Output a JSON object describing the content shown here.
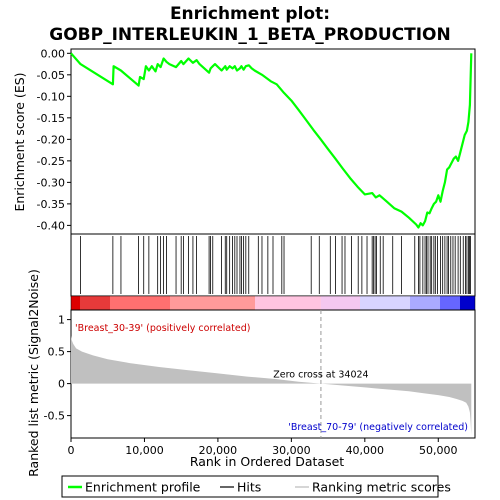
{
  "chart_data": {
    "type": "line",
    "title_line1": "Enrichment plot:",
    "title_line2": "GOBP_INTERLEUKIN_1_BETA_PRODUCTION",
    "top_panel": {
      "ylabel": "Enrichment score (ES)",
      "ylim": [
        -0.42,
        0.01
      ],
      "yticks": [
        0.0,
        -0.05,
        -0.1,
        -0.15,
        -0.2,
        -0.25,
        -0.3,
        -0.35,
        -0.4
      ],
      "ytick_labels": [
        "0.00",
        "-0.05",
        "-0.10",
        "-0.15",
        "-0.20",
        "-0.25",
        "-0.30",
        "-0.35",
        "-0.40"
      ],
      "series": [
        {
          "name": "Enrichment profile",
          "color": "#00ff00",
          "x": [
            0,
            1300,
            5700,
            5800,
            6800,
            9200,
            9400,
            9900,
            10200,
            10600,
            11000,
            11500,
            11800,
            12200,
            12600,
            13000,
            13400,
            14300,
            15000,
            15300,
            16000,
            16600,
            17100,
            17500,
            18800,
            19000,
            19300,
            19600,
            20500,
            21000,
            21200,
            21600,
            22000,
            22300,
            22600,
            23000,
            23200,
            23500,
            23800,
            24200,
            24600,
            25000,
            26000,
            27200,
            28000,
            29000,
            30000,
            31000,
            32000,
            33000,
            34000,
            35000,
            36000,
            37000,
            38000,
            39000,
            40000,
            41000,
            41500,
            42000,
            43000,
            44000,
            45000,
            46000,
            47000,
            47300,
            47600,
            47900,
            48200,
            48500,
            48800,
            49100,
            49400,
            49700,
            50000,
            50300,
            50600,
            50900,
            51200,
            51500,
            51800,
            52100,
            52400,
            52700,
            53000,
            53300,
            53600,
            53900,
            54100,
            54300,
            54400,
            54500
          ],
          "y": [
            0.0,
            -0.025,
            -0.072,
            -0.03,
            -0.04,
            -0.075,
            -0.055,
            -0.06,
            -0.03,
            -0.04,
            -0.03,
            -0.042,
            -0.025,
            -0.032,
            -0.012,
            -0.02,
            -0.025,
            -0.032,
            -0.018,
            -0.025,
            -0.012,
            -0.022,
            -0.016,
            -0.025,
            -0.045,
            -0.035,
            -0.03,
            -0.025,
            -0.04,
            -0.03,
            -0.038,
            -0.03,
            -0.035,
            -0.03,
            -0.04,
            -0.035,
            -0.03,
            -0.038,
            -0.03,
            -0.028,
            -0.035,
            -0.04,
            -0.05,
            -0.065,
            -0.072,
            -0.092,
            -0.11,
            -0.132,
            -0.155,
            -0.178,
            -0.2,
            -0.223,
            -0.245,
            -0.268,
            -0.29,
            -0.31,
            -0.328,
            -0.325,
            -0.335,
            -0.33,
            -0.345,
            -0.36,
            -0.368,
            -0.382,
            -0.398,
            -0.405,
            -0.395,
            -0.4,
            -0.39,
            -0.37,
            -0.372,
            -0.36,
            -0.35,
            -0.345,
            -0.33,
            -0.345,
            -0.32,
            -0.3,
            -0.27,
            -0.265,
            -0.255,
            -0.245,
            -0.24,
            -0.25,
            -0.23,
            -0.21,
            -0.19,
            -0.18,
            -0.16,
            -0.12,
            -0.06,
            0.0
          ]
        }
      ]
    },
    "hits_panel": {
      "x": [
        1300,
        5700,
        6800,
        9200,
        9900,
        10600,
        11800,
        12200,
        12600,
        13000,
        14300,
        15000,
        15300,
        16000,
        16600,
        17100,
        18800,
        19000,
        19300,
        20500,
        21000,
        21200,
        21600,
        22000,
        22300,
        22600,
        23000,
        23200,
        23500,
        23800,
        24200,
        25500,
        26000,
        26800,
        27500,
        28700,
        29000,
        32700,
        33800,
        35300,
        36000,
        36900,
        37300,
        38200,
        39100,
        39600,
        40300,
        41000,
        41200,
        41400,
        41600,
        42100,
        42500,
        43800,
        45000,
        46800,
        47300,
        47500,
        47900,
        48200,
        48400,
        48600,
        48900,
        49100,
        49400,
        49600,
        49900,
        50300,
        50600,
        50900,
        51200,
        51400,
        51700,
        52000,
        52300,
        52700,
        53000,
        53400,
        53700,
        53900,
        54100,
        54250,
        54400
      ]
    },
    "color_bar": {
      "left_label": "'Breast_30-39' (positively correlated)",
      "right_label": "'Breast_70-79' (negatively correlated)",
      "left_color": "#dd0000",
      "right_color": "#0000cc"
    },
    "bottom_panel": {
      "ylabel": "Ranked list metric (Signal2Noise)",
      "xlabel": "Rank in Ordered Dataset",
      "xlim": [
        0,
        55000
      ],
      "ylim": [
        -0.85,
        1.15
      ],
      "xticks": [
        0,
        10000,
        20000,
        30000,
        40000,
        50000
      ],
      "xtick_labels": [
        "0",
        "10,000",
        "20,000",
        "30,000",
        "40,000",
        "50,000"
      ],
      "yticks": [
        1.0,
        0.5,
        0.0,
        -0.5
      ],
      "ytick_labels": [
        "1",
        "0.5",
        "0",
        "-0.5"
      ],
      "zero_cross_x": 34024,
      "zero_cross_label": "Zero cross at 34024",
      "metric_x": [
        0,
        100,
        300,
        700,
        1500,
        3000,
        5000,
        8000,
        12000,
        16000,
        20000,
        24000,
        28000,
        31000,
        34024,
        37000,
        40000,
        43000,
        46000,
        48000,
        50000,
        51500,
        52500,
        53300,
        53800,
        54100,
        54300,
        54400,
        54500
      ],
      "metric_y": [
        0.75,
        0.68,
        0.62,
        0.55,
        0.5,
        0.44,
        0.38,
        0.32,
        0.26,
        0.21,
        0.16,
        0.11,
        0.07,
        0.03,
        0.0,
        -0.03,
        -0.06,
        -0.09,
        -0.12,
        -0.15,
        -0.18,
        -0.21,
        -0.24,
        -0.27,
        -0.3,
        -0.36,
        -0.45,
        -0.6,
        -0.8
      ]
    },
    "legend": [
      {
        "label": "Enrichment profile",
        "color": "#00ff00"
      },
      {
        "label": "Hits",
        "color": "#000000"
      },
      {
        "label": "Ranking metric scores",
        "color": "#bbbbbb"
      }
    ]
  }
}
